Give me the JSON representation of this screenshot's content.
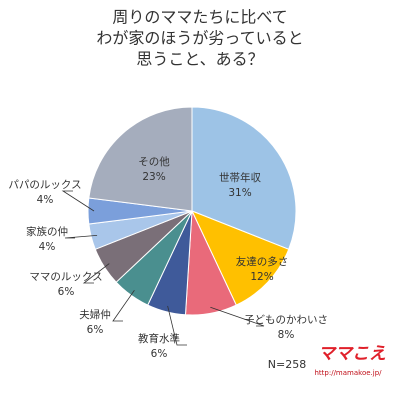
{
  "chart_data": {
    "type": "pie",
    "title": [
      "周りのママたちに比べて",
      "わが家のほうが劣っていると",
      "思うこと、ある？"
    ],
    "categories": [
      "世帯年収",
      "友達の多さ",
      "子どものかわいさ",
      "教育水準",
      "夫婦仲",
      "ママのルックス",
      "家族の仲",
      "パパのルックス",
      "その他"
    ],
    "values": [
      31,
      12,
      8,
      6,
      6,
      6,
      4,
      4,
      23
    ],
    "value_labels": [
      "31%",
      "12%",
      "8%",
      "6%",
      "6%",
      "6%",
      "4%",
      "4%",
      "23%"
    ],
    "colors": [
      "#9dc3e6",
      "#ffc000",
      "#e96a7a",
      "#3f5a9a",
      "#4a8f8f",
      "#7a6f78",
      "#a9c6ea",
      "#7b9fdb",
      "#a5adbd"
    ],
    "note": "N=258",
    "logo": "ママこえ",
    "url": "http://mamakoe.jp/"
  }
}
